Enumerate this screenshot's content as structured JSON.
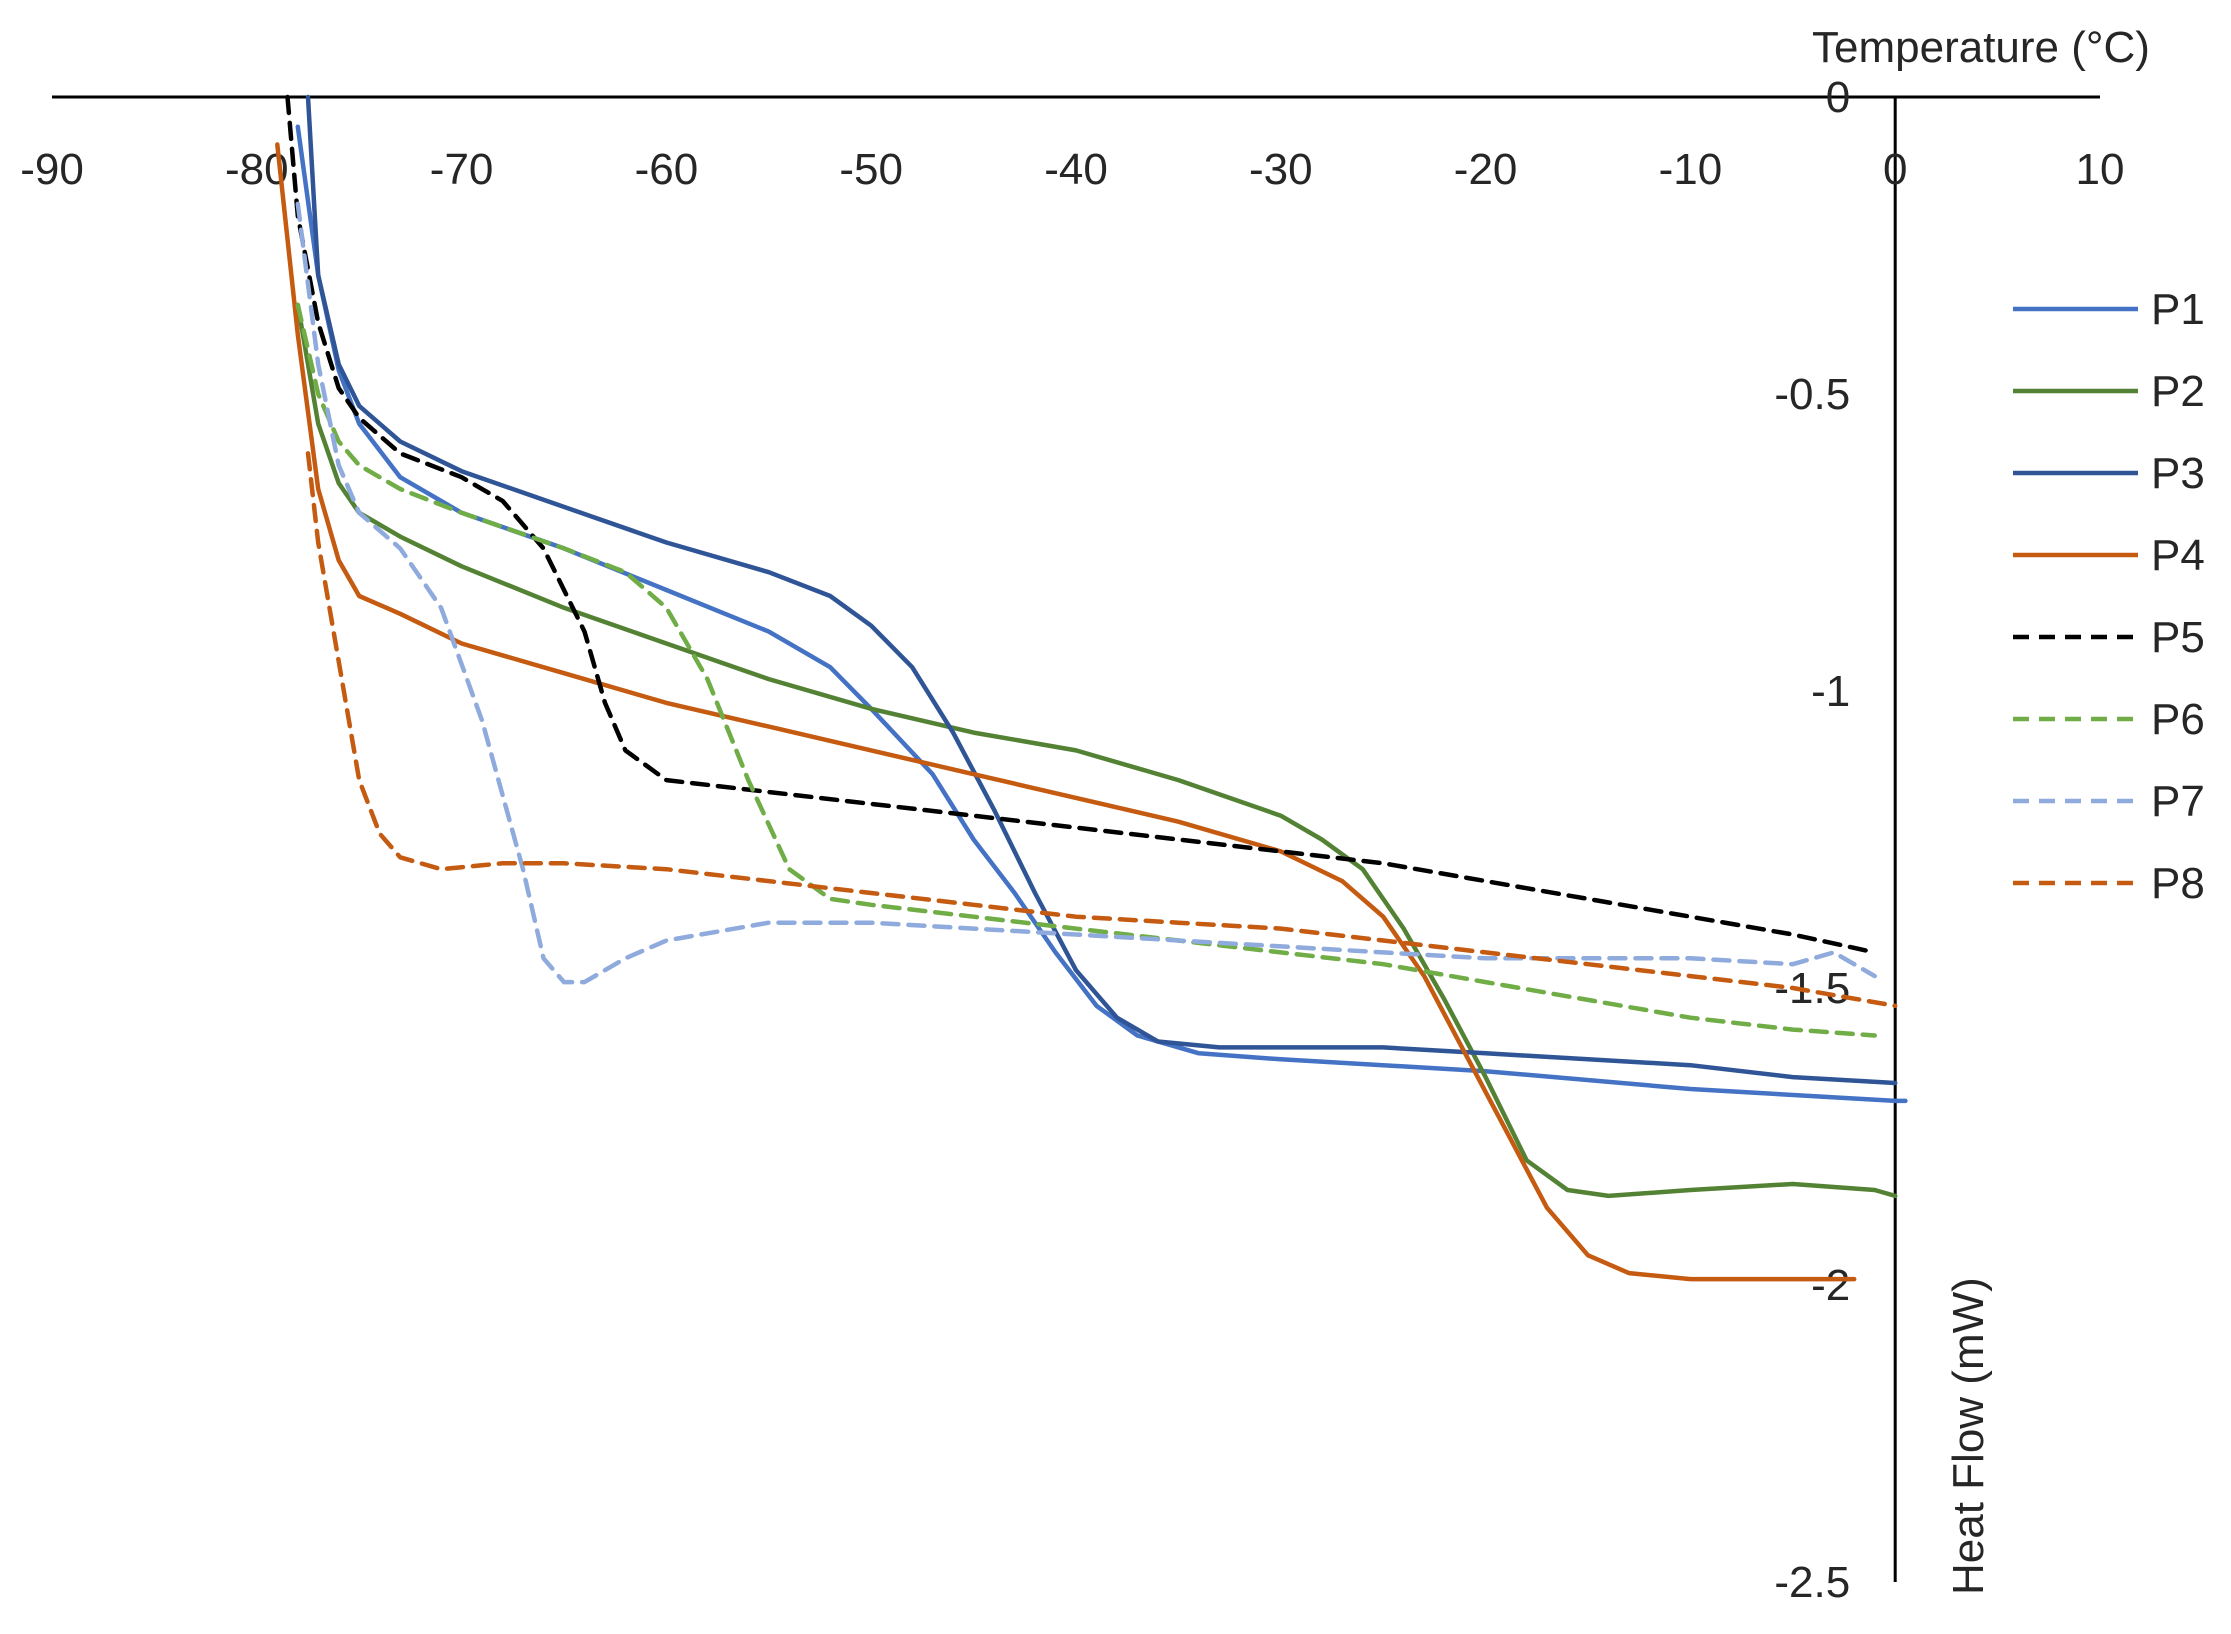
{
  "chart_data": {
    "type": "line",
    "title": "",
    "xlabel": "Temperature (°C)",
    "ylabel": "Heat Flow (mW)",
    "xlim": [
      -90,
      10
    ],
    "ylim": [
      -2.5,
      0
    ],
    "x_ticks": [
      "-90",
      "-80",
      "-70",
      "-60",
      "-50",
      "-40",
      "-30",
      "-20",
      "-10",
      "0",
      "10"
    ],
    "y_ticks": [
      "0",
      "-0.5",
      "-1",
      "-1.5",
      "-2",
      "-2.5"
    ],
    "legend_position": "right",
    "series": [
      {
        "name": "P1",
        "color": "#4472c4",
        "dash": "solid",
        "points": [
          [
            -78,
            -0.05
          ],
          [
            -77,
            -0.3
          ],
          [
            -76,
            -0.46
          ],
          [
            -75,
            -0.55
          ],
          [
            -73,
            -0.64
          ],
          [
            -70,
            -0.7
          ],
          [
            -65,
            -0.76
          ],
          [
            -60,
            -0.83
          ],
          [
            -55,
            -0.9
          ],
          [
            -52,
            -0.96
          ],
          [
            -50,
            -1.03
          ],
          [
            -47,
            -1.14
          ],
          [
            -45,
            -1.25
          ],
          [
            -43,
            -1.34
          ],
          [
            -41,
            -1.44
          ],
          [
            -39,
            -1.53
          ],
          [
            -37,
            -1.58
          ],
          [
            -34,
            -1.61
          ],
          [
            -30,
            -1.62
          ],
          [
            -20,
            -1.64
          ],
          [
            -10,
            -1.67
          ],
          [
            0,
            -1.69
          ],
          [
            0.5,
            -1.69
          ]
        ]
      },
      {
        "name": "P2",
        "color": "#548235",
        "dash": "solid",
        "points": [
          [
            -78,
            -0.35
          ],
          [
            -77,
            -0.55
          ],
          [
            -76,
            -0.65
          ],
          [
            -75,
            -0.7
          ],
          [
            -73,
            -0.74
          ],
          [
            -70,
            -0.79
          ],
          [
            -65,
            -0.86
          ],
          [
            -60,
            -0.92
          ],
          [
            -55,
            -0.98
          ],
          [
            -50,
            -1.03
          ],
          [
            -45,
            -1.07
          ],
          [
            -40,
            -1.1
          ],
          [
            -35,
            -1.15
          ],
          [
            -30,
            -1.21
          ],
          [
            -28,
            -1.25
          ],
          [
            -26,
            -1.3
          ],
          [
            -24,
            -1.4
          ],
          [
            -22,
            -1.52
          ],
          [
            -20,
            -1.65
          ],
          [
            -18,
            -1.79
          ],
          [
            -16,
            -1.84
          ],
          [
            -14,
            -1.85
          ],
          [
            -10,
            -1.84
          ],
          [
            -5,
            -1.83
          ],
          [
            -1,
            -1.84
          ],
          [
            0,
            -1.85
          ]
        ]
      },
      {
        "name": "P3",
        "color": "#2f5597",
        "dash": "solid",
        "points": [
          [
            -77.5,
            0.0
          ],
          [
            -77,
            -0.3
          ],
          [
            -76,
            -0.45
          ],
          [
            -75,
            -0.52
          ],
          [
            -73,
            -0.58
          ],
          [
            -70,
            -0.63
          ],
          [
            -65,
            -0.69
          ],
          [
            -60,
            -0.75
          ],
          [
            -55,
            -0.8
          ],
          [
            -52,
            -0.84
          ],
          [
            -50,
            -0.89
          ],
          [
            -48,
            -0.96
          ],
          [
            -46,
            -1.07
          ],
          [
            -44,
            -1.2
          ],
          [
            -42,
            -1.34
          ],
          [
            -40,
            -1.47
          ],
          [
            -38,
            -1.55
          ],
          [
            -36,
            -1.59
          ],
          [
            -33,
            -1.6
          ],
          [
            -30,
            -1.6
          ],
          [
            -25,
            -1.6
          ],
          [
            -20,
            -1.61
          ],
          [
            -10,
            -1.63
          ],
          [
            -5,
            -1.65
          ],
          [
            0,
            -1.66
          ]
        ]
      },
      {
        "name": "P4",
        "color": "#c55a11",
        "dash": "solid",
        "points": [
          [
            -79,
            -0.08
          ],
          [
            -78,
            -0.4
          ],
          [
            -77,
            -0.66
          ],
          [
            -76,
            -0.78
          ],
          [
            -75,
            -0.84
          ],
          [
            -73,
            -0.87
          ],
          [
            -70,
            -0.92
          ],
          [
            -65,
            -0.97
          ],
          [
            -60,
            -1.02
          ],
          [
            -55,
            -1.06
          ],
          [
            -50,
            -1.1
          ],
          [
            -45,
            -1.14
          ],
          [
            -40,
            -1.18
          ],
          [
            -35,
            -1.22
          ],
          [
            -30,
            -1.27
          ],
          [
            -27,
            -1.32
          ],
          [
            -25,
            -1.38
          ],
          [
            -23,
            -1.48
          ],
          [
            -21,
            -1.61
          ],
          [
            -19,
            -1.74
          ],
          [
            -17,
            -1.87
          ],
          [
            -15,
            -1.95
          ],
          [
            -13,
            -1.98
          ],
          [
            -10,
            -1.99
          ],
          [
            -5,
            -1.99
          ],
          [
            -2,
            -1.99
          ]
        ]
      },
      {
        "name": "P5",
        "color": "#000000",
        "dash": "dashed",
        "points": [
          [
            -78.5,
            0.0
          ],
          [
            -78,
            -0.2
          ],
          [
            -77,
            -0.38
          ],
          [
            -76,
            -0.49
          ],
          [
            -75,
            -0.54
          ],
          [
            -73,
            -0.6
          ],
          [
            -70,
            -0.64
          ],
          [
            -68,
            -0.68
          ],
          [
            -66,
            -0.76
          ],
          [
            -64,
            -0.9
          ],
          [
            -63,
            -1.02
          ],
          [
            -62,
            -1.1
          ],
          [
            -60,
            -1.15
          ],
          [
            -55,
            -1.17
          ],
          [
            -50,
            -1.19
          ],
          [
            -45,
            -1.21
          ],
          [
            -40,
            -1.23
          ],
          [
            -35,
            -1.25
          ],
          [
            -30,
            -1.27
          ],
          [
            -25,
            -1.29
          ],
          [
            -20,
            -1.32
          ],
          [
            -15,
            -1.35
          ],
          [
            -10,
            -1.38
          ],
          [
            -5,
            -1.41
          ],
          [
            -1,
            -1.44
          ]
        ]
      },
      {
        "name": "P6",
        "color": "#70ad47",
        "dash": "dashed",
        "points": [
          [
            -78,
            -0.35
          ],
          [
            -77,
            -0.5
          ],
          [
            -76,
            -0.58
          ],
          [
            -75,
            -0.62
          ],
          [
            -73,
            -0.66
          ],
          [
            -70,
            -0.7
          ],
          [
            -65,
            -0.76
          ],
          [
            -62,
            -0.8
          ],
          [
            -60,
            -0.86
          ],
          [
            -58,
            -0.98
          ],
          [
            -56,
            -1.15
          ],
          [
            -54,
            -1.3
          ],
          [
            -52,
            -1.35
          ],
          [
            -50,
            -1.36
          ],
          [
            -45,
            -1.38
          ],
          [
            -40,
            -1.4
          ],
          [
            -35,
            -1.42
          ],
          [
            -30,
            -1.44
          ],
          [
            -25,
            -1.46
          ],
          [
            -20,
            -1.49
          ],
          [
            -15,
            -1.52
          ],
          [
            -10,
            -1.55
          ],
          [
            -5,
            -1.57
          ],
          [
            -1,
            -1.58
          ]
        ]
      },
      {
        "name": "P7",
        "color": "#8faadc",
        "dash": "dashed",
        "points": [
          [
            -78,
            -0.18
          ],
          [
            -77,
            -0.45
          ],
          [
            -76,
            -0.62
          ],
          [
            -75,
            -0.7
          ],
          [
            -73,
            -0.76
          ],
          [
            -71,
            -0.86
          ],
          [
            -69,
            -1.05
          ],
          [
            -67,
            -1.3
          ],
          [
            -66,
            -1.45
          ],
          [
            -65,
            -1.49
          ],
          [
            -64,
            -1.49
          ],
          [
            -62,
            -1.45
          ],
          [
            -60,
            -1.42
          ],
          [
            -55,
            -1.39
          ],
          [
            -50,
            -1.39
          ],
          [
            -45,
            -1.4
          ],
          [
            -40,
            -1.41
          ],
          [
            -35,
            -1.42
          ],
          [
            -30,
            -1.43
          ],
          [
            -25,
            -1.44
          ],
          [
            -20,
            -1.45
          ],
          [
            -15,
            -1.45
          ],
          [
            -10,
            -1.45
          ],
          [
            -5,
            -1.46
          ],
          [
            -3,
            -1.44
          ],
          [
            -1,
            -1.48
          ]
        ]
      },
      {
        "name": "P8",
        "color": "#c55a11",
        "dash": "dashed",
        "points": [
          [
            -77.5,
            -0.6
          ],
          [
            -77,
            -0.75
          ],
          [
            -76,
            -0.95
          ],
          [
            -75,
            -1.15
          ],
          [
            -74,
            -1.24
          ],
          [
            -73,
            -1.28
          ],
          [
            -71,
            -1.3
          ],
          [
            -68,
            -1.29
          ],
          [
            -65,
            -1.29
          ],
          [
            -60,
            -1.3
          ],
          [
            -55,
            -1.32
          ],
          [
            -50,
            -1.34
          ],
          [
            -45,
            -1.36
          ],
          [
            -40,
            -1.38
          ],
          [
            -35,
            -1.39
          ],
          [
            -30,
            -1.4
          ],
          [
            -25,
            -1.42
          ],
          [
            -20,
            -1.44
          ],
          [
            -15,
            -1.46
          ],
          [
            -10,
            -1.48
          ],
          [
            -5,
            -1.5
          ],
          [
            0,
            -1.53
          ]
        ]
      }
    ]
  }
}
